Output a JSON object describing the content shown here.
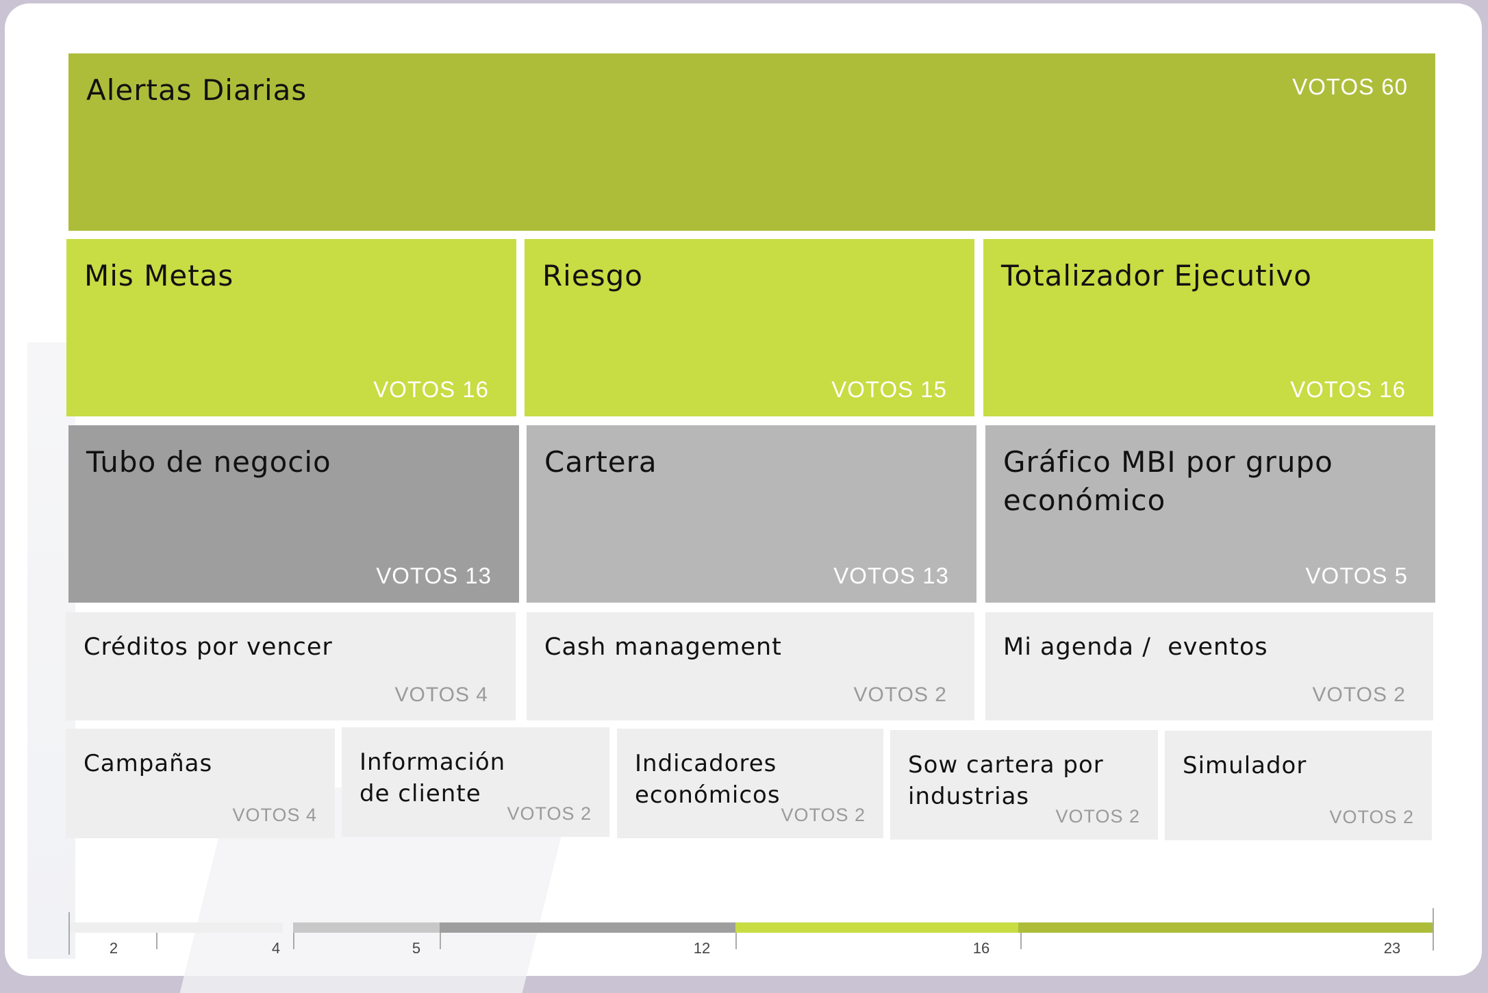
{
  "colors": {
    "dark_green": "#adbd3a",
    "light_green": "#c8dc44",
    "dark_gray": "#9e9e9e",
    "mid_gray": "#b7b7b7",
    "light_gray": "#eeeeee",
    "frame": "#c9c3d3"
  },
  "tiles": [
    {
      "title": "Alertas Diarias",
      "votes": "VOTOS 60"
    },
    {
      "title": "Mis Metas",
      "votes": "VOTOS 16"
    },
    {
      "title": "Riesgo",
      "votes": "VOTOS 15"
    },
    {
      "title": "Totalizador Ejecutivo",
      "votes": "VOTOS 16"
    },
    {
      "title": "Tubo de negocio",
      "votes": "VOTOS 13"
    },
    {
      "title": "Cartera",
      "votes": "VOTOS 13"
    },
    {
      "title": "Gráfico MBI por grupo económico",
      "votes": "VOTOS 5"
    },
    {
      "title": "Créditos por vencer",
      "votes": "VOTOS 4"
    },
    {
      "title": "Cash management",
      "votes": "VOTOS 2"
    },
    {
      "title": "Mi agenda /  eventos",
      "votes": "VOTOS 2"
    },
    {
      "title": "Campañas",
      "votes": "VOTOS 4"
    },
    {
      "title": "Información de cliente",
      "votes": "VOTOS 2"
    },
    {
      "title": "Indicadores económicos",
      "votes": "VOTOS 2"
    },
    {
      "title": "Sow cartera por industrias",
      "votes": "VOTOS 2"
    },
    {
      "title": "Simulador",
      "votes": "VOTOS 2"
    }
  ],
  "legend": {
    "labels": [
      "2",
      "4",
      "5",
      "12",
      "16",
      "23"
    ]
  }
}
